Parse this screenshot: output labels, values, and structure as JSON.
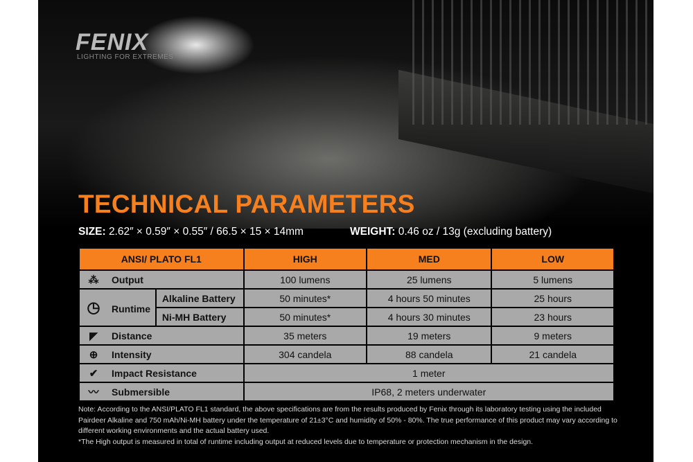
{
  "brand": {
    "logo": "FENIX",
    "tagline": "LIGHTING FOR EXTREMES"
  },
  "title": "TECHNICAL PARAMETERS",
  "size": {
    "label": "SIZE:",
    "value": "2.62″ × 0.59″ × 0.55″ / 66.5 × 15 × 14mm"
  },
  "weight": {
    "label": "WEIGHT:",
    "value": "0.46 oz / 13g (excluding battery)"
  },
  "table": {
    "headers": [
      "ANSI/ PLATO  FL1",
      "HIGH",
      "MED",
      "LOW"
    ],
    "output": {
      "label": "Output",
      "values": [
        "100 lumens",
        "25 lumens",
        "5 lumens"
      ]
    },
    "runtime": {
      "label": "Runtime",
      "alkaline": {
        "label": "Alkaline Battery",
        "values": [
          "50 minutes*",
          "4 hours 50 minutes",
          "25 hours"
        ]
      },
      "nimh": {
        "label": "Ni-MH Battery",
        "values": [
          "50 minutes*",
          "4 hours 30 minutes",
          "23 hours"
        ]
      }
    },
    "distance": {
      "label": "Distance",
      "values": [
        "35 meters",
        "19 meters",
        "9 meters"
      ]
    },
    "intensity": {
      "label": "Intensity",
      "values": [
        "304 candela",
        "88 candela",
        "21 candela"
      ]
    },
    "impact": {
      "label": "Impact Resistance",
      "value": "1 meter"
    },
    "submersible": {
      "label": "Submersible",
      "value": "IP68, 2 meters underwater"
    }
  },
  "note": "Note: According to the ANSI/PLATO FL1 standard, the above specifications are from the results produced by Fenix through its laboratory testing using the included Pairdeer Alkaline and 750 mAh/Ni-MH battery under the temperature of 21±3°C and humidity of 50% - 80%. The true performance of this product may vary according to different working environments and the actual battery used.",
  "footnote": "*The High output is measured in total of runtime including output at reduced levels due to temperature or protection mechanism in the design.",
  "colors": {
    "accent": "#f7801e",
    "cell": "#a9a9a9",
    "background": "#000000"
  }
}
